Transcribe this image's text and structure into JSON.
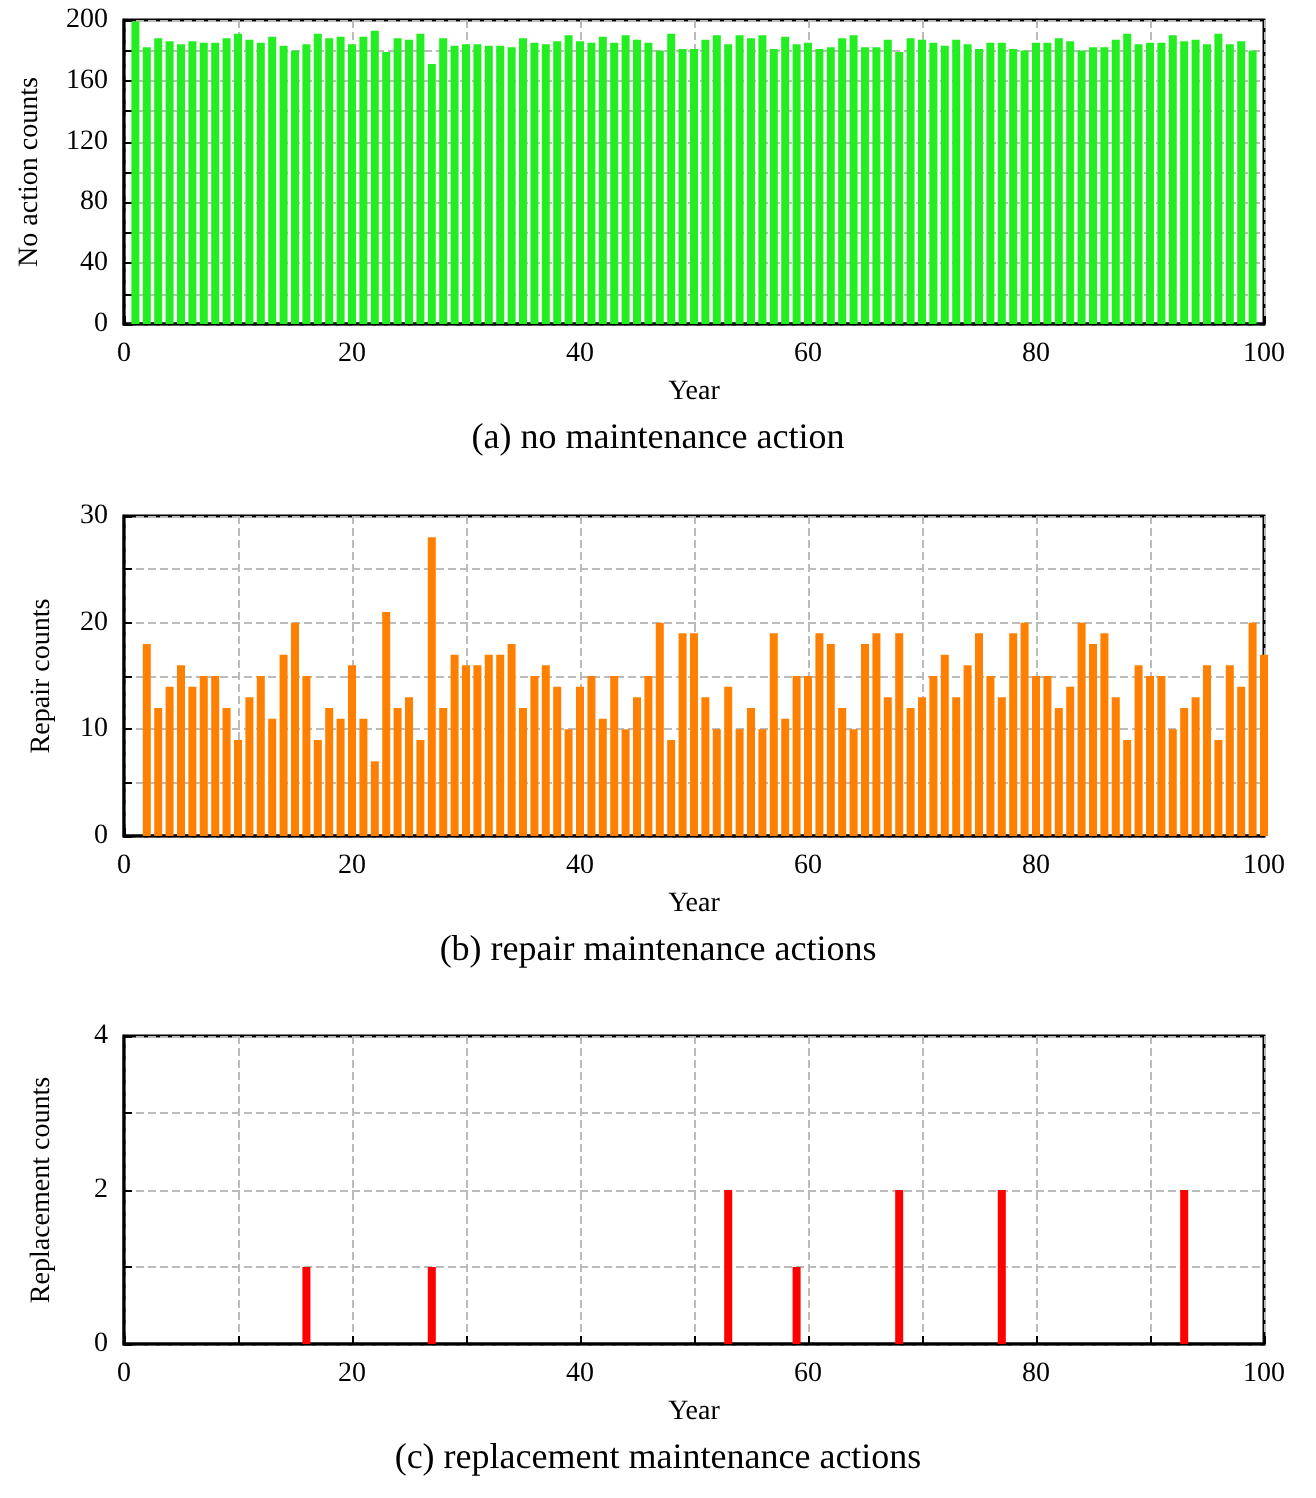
{
  "chart_data": [
    {
      "type": "bar",
      "title": "(a) no maintenance action",
      "xlabel": "Year",
      "ylabel": "No action counts",
      "x": [
        1,
        2,
        3,
        4,
        5,
        6,
        7,
        8,
        9,
        10,
        11,
        12,
        13,
        14,
        15,
        16,
        17,
        18,
        19,
        20,
        21,
        22,
        23,
        24,
        25,
        26,
        27,
        28,
        29,
        30,
        31,
        32,
        33,
        34,
        35,
        36,
        37,
        38,
        39,
        40,
        41,
        42,
        43,
        44,
        45,
        46,
        47,
        48,
        49,
        50,
        51,
        52,
        53,
        54,
        55,
        56,
        57,
        58,
        59,
        60,
        61,
        62,
        63,
        64,
        65,
        66,
        67,
        68,
        69,
        70,
        71,
        72,
        73,
        74,
        75,
        76,
        77,
        78,
        79,
        80,
        81,
        82,
        83,
        84,
        85,
        86,
        87,
        88,
        89,
        90,
        91,
        92,
        93,
        94,
        95,
        96,
        97,
        98,
        99
      ],
      "values": [
        199,
        182,
        188,
        186,
        184,
        186,
        185,
        185,
        188,
        191,
        187,
        185,
        189,
        183,
        180,
        184,
        191,
        188,
        189,
        184,
        189,
        193,
        179,
        188,
        187,
        191,
        171,
        188,
        183,
        184,
        184,
        183,
        183,
        182,
        188,
        185,
        184,
        186,
        190,
        186,
        185,
        189,
        185,
        190,
        187,
        185,
        180,
        191,
        181,
        181,
        187,
        190,
        184,
        190,
        188,
        190,
        181,
        189,
        184,
        185,
        181,
        182,
        188,
        190,
        182,
        182,
        187,
        179,
        188,
        187,
        185,
        183,
        187,
        184,
        181,
        185,
        185,
        181,
        180,
        185,
        185,
        188,
        186,
        180,
        182,
        182,
        187,
        191,
        184,
        185,
        185,
        190,
        186,
        187,
        184,
        191,
        184,
        186,
        180
      ],
      "color": "#22ee22",
      "xlim": [
        0,
        100
      ],
      "ylim": [
        0,
        200
      ],
      "xticks": [
        0,
        {
          "value": 10,
          "label": null
        },
        20,
        {
          "value": 30,
          "label": null
        },
        40,
        {
          "value": 50,
          "label": null
        },
        60,
        {
          "value": 70,
          "label": null
        },
        80,
        {
          "value": 90,
          "label": null
        },
        100
      ],
      "yticks": [
        0,
        {
          "value": 20,
          "label": null
        },
        40,
        {
          "value": 60,
          "label": null
        },
        80,
        {
          "value": 100,
          "label": null
        },
        120,
        {
          "value": 140,
          "label": null
        },
        160,
        {
          "value": 180,
          "label": null
        },
        200
      ],
      "grid": true
    },
    {
      "type": "bar",
      "title": "(b) repair maintenance actions",
      "xlabel": "Year",
      "ylabel": "Repair counts",
      "x": [
        2,
        3,
        4,
        5,
        6,
        7,
        8,
        9,
        10,
        11,
        12,
        13,
        14,
        15,
        16,
        17,
        18,
        19,
        20,
        21,
        22,
        23,
        24,
        25,
        26,
        27,
        28,
        29,
        30,
        31,
        32,
        33,
        34,
        35,
        36,
        37,
        38,
        39,
        40,
        41,
        42,
        43,
        44,
        45,
        46,
        47,
        48,
        49,
        50,
        51,
        52,
        53,
        54,
        55,
        56,
        57,
        58,
        59,
        60,
        61,
        62,
        63,
        64,
        65,
        66,
        67,
        68,
        69,
        70,
        71,
        72,
        73,
        74,
        75,
        76,
        77,
        78,
        79,
        80,
        81,
        82,
        83,
        84,
        85,
        86,
        87,
        88,
        89,
        90,
        91,
        92,
        93,
        94,
        95,
        96,
        97,
        98,
        99,
        100
      ],
      "values": [
        18,
        12,
        14,
        16,
        14,
        15,
        15,
        12,
        9,
        13,
        15,
        11,
        17,
        20,
        15,
        9,
        12,
        11,
        16,
        11,
        7,
        21,
        12,
        13,
        9,
        28,
        12,
        17,
        16,
        16,
        17,
        17,
        18,
        12,
        15,
        16,
        14,
        10,
        14,
        15,
        11,
        15,
        10,
        13,
        15,
        20,
        9,
        19,
        19,
        13,
        10,
        14,
        10,
        12,
        10,
        19,
        11,
        15,
        15,
        19,
        18,
        12,
        10,
        18,
        19,
        13,
        19,
        12,
        13,
        15,
        17,
        13,
        16,
        19,
        15,
        13,
        19,
        20,
        15,
        15,
        12,
        14,
        20,
        18,
        19,
        13,
        9,
        16,
        15,
        15,
        10,
        12,
        13,
        16,
        9,
        16,
        14,
        20,
        17
      ],
      "color": "#ff8000",
      "xlim": [
        0,
        100
      ],
      "ylim": [
        0,
        30
      ],
      "xticks": [
        0,
        {
          "value": 10,
          "label": null
        },
        20,
        {
          "value": 30,
          "label": null
        },
        40,
        {
          "value": 50,
          "label": null
        },
        60,
        {
          "value": 70,
          "label": null
        },
        80,
        {
          "value": 90,
          "label": null
        },
        100
      ],
      "yticks": [
        0,
        {
          "value": 5,
          "label": null
        },
        10,
        {
          "value": 15,
          "label": null
        },
        20,
        {
          "value": 25,
          "label": null
        },
        30
      ],
      "grid": true
    },
    {
      "type": "bar",
      "title": "(c) replacement maintenance actions",
      "xlabel": "Year",
      "ylabel": "Replacement counts",
      "x": [
        16,
        27,
        53,
        59,
        68,
        77,
        93
      ],
      "values": [
        1,
        1,
        2,
        1,
        2,
        2,
        2
      ],
      "color": "#ff0000",
      "xlim": [
        0,
        100
      ],
      "ylim": [
        0,
        4
      ],
      "xticks": [
        0,
        {
          "value": 10,
          "label": null
        },
        20,
        {
          "value": 30,
          "label": null
        },
        40,
        {
          "value": 50,
          "label": null
        },
        60,
        {
          "value": 70,
          "label": null
        },
        80,
        {
          "value": 90,
          "label": null
        },
        100
      ],
      "yticks": [
        0,
        {
          "value": 1,
          "label": null
        },
        2,
        {
          "value": 3,
          "label": null
        },
        4
      ],
      "grid": true
    }
  ]
}
